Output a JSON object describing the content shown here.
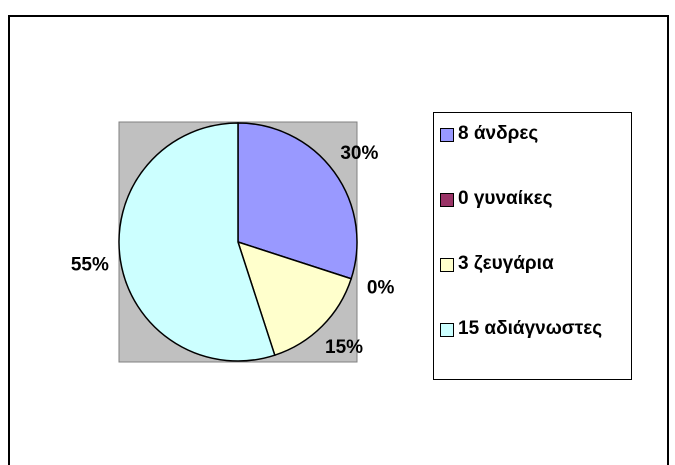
{
  "chart_data": {
    "type": "pie",
    "categories": [
      "8 άνδρες",
      "0 γυναίκες",
      "3 ζευγάρια",
      "15 αδιάγνωστες"
    ],
    "values": [
      30,
      0,
      15,
      55
    ],
    "value_labels": [
      "30%",
      "0%",
      "15%",
      "55%"
    ],
    "colors": [
      "#9999ff",
      "#993366",
      "#ffffcc",
      "#ccffff"
    ]
  }
}
